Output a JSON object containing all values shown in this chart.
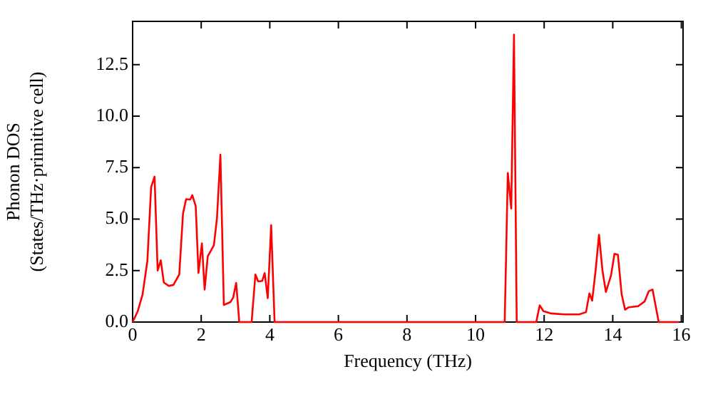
{
  "chart_data": {
    "type": "line",
    "xlabel": "Frequency (THz)",
    "ylabel": "Phonon DOS\n(States/THz·primitive cell)",
    "x": [
      0,
      0.15,
      0.29,
      0.43,
      0.54,
      0.64,
      0.73,
      0.82,
      0.91,
      1.05,
      1.19,
      1.36,
      1.47,
      1.56,
      1.68,
      1.74,
      1.84,
      1.92,
      2.02,
      2.1,
      2.19,
      2.37,
      2.46,
      2.56,
      2.66,
      2.85,
      2.93,
      3.02,
      3.11,
      3.47,
      3.58,
      3.66,
      3.78,
      3.85,
      3.94,
      4.04,
      4.14,
      10.85,
      10.94,
      11.04,
      11.12,
      11.2,
      11.77,
      11.87,
      11.98,
      12.19,
      12.6,
      13.02,
      13.22,
      13.32,
      13.4,
      13.5,
      13.6,
      13.7,
      13.8,
      13.95,
      14.05,
      14.15,
      14.26,
      14.36,
      14.47,
      14.74,
      14.93,
      15.05,
      15.16,
      15.34,
      15.92
    ],
    "series": [
      {
        "color": "#ff0000",
        "values": [
          0,
          0.53,
          1.34,
          2.96,
          6.55,
          7.06,
          2.5,
          3.0,
          1.92,
          1.76,
          1.8,
          2.31,
          5.28,
          5.97,
          5.95,
          6.16,
          5.63,
          2.38,
          3.82,
          1.58,
          3.19,
          3.73,
          5.05,
          8.13,
          0.83,
          0.97,
          1.18,
          1.9,
          0,
          0,
          2.31,
          1.97,
          2.0,
          2.38,
          1.16,
          4.7,
          0,
          0,
          7.24,
          5.51,
          13.96,
          0,
          0,
          0.81,
          0.53,
          0.42,
          0.37,
          0.37,
          0.48,
          1.39,
          1.04,
          2.5,
          4.24,
          2.5,
          1.46,
          2.27,
          3.31,
          3.27,
          1.34,
          0.6,
          0.72,
          0.77,
          1.0,
          1.5,
          1.58,
          0,
          0
        ]
      }
    ],
    "xlim": [
      0,
      16.05
    ],
    "xticks": [
      0,
      2,
      4,
      6,
      8,
      10,
      12,
      14,
      16
    ],
    "ylim": [
      0,
      14.6
    ],
    "yticks": [
      {
        "value": 0,
        "label": "0.0"
      },
      {
        "value": 2.5,
        "label": "2.5"
      },
      {
        "value": 5,
        "label": "5.0"
      },
      {
        "value": 7.5,
        "label": "7.5"
      },
      {
        "value": 10,
        "label": "10.0"
      },
      {
        "value": 12.5,
        "label": "12.5"
      }
    ],
    "grid": false,
    "legend": false,
    "marker": "none",
    "line_style": "solid"
  }
}
